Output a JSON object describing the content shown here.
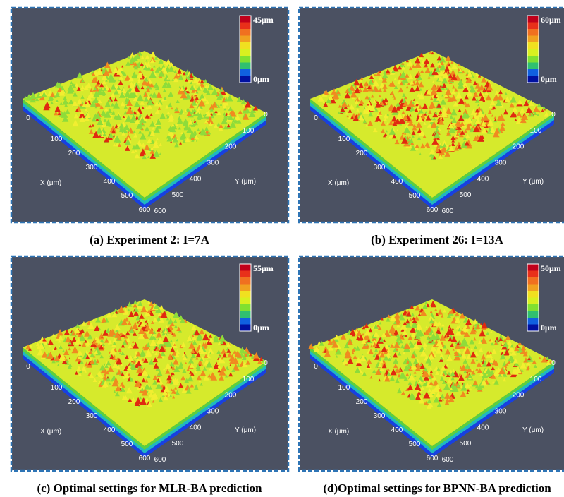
{
  "panels": [
    {
      "caption": "(a) Experiment 2: I=7A",
      "colorbar": {
        "max": "45μm",
        "min": "0μm"
      },
      "x_axis": {
        "title": "X (μm)",
        "ticks": [
          0,
          100,
          200,
          300,
          400,
          500,
          600
        ]
      },
      "y_axis": {
        "title": "Y (μm)",
        "ticks": [
          0,
          100,
          200,
          300,
          400,
          500,
          600
        ]
      }
    },
    {
      "caption": "(b) Experiment 26: I=13A",
      "colorbar": {
        "max": "60μm",
        "min": "0μm"
      },
      "x_axis": {
        "title": "X (μm)",
        "ticks": [
          0,
          100,
          200,
          300,
          400,
          500,
          600
        ]
      },
      "y_axis": {
        "title": "Y (μm)",
        "ticks": [
          0,
          100,
          200,
          300,
          400,
          500,
          600
        ]
      }
    },
    {
      "caption": "(c) Optimal settings for MLR-BA prediction",
      "colorbar": {
        "max": "55μm",
        "min": "0μm"
      },
      "x_axis": {
        "title": "X (μm)",
        "ticks": [
          0,
          100,
          200,
          300,
          400,
          500,
          600
        ]
      },
      "y_axis": {
        "title": "Y (μm)",
        "ticks": [
          0,
          100,
          200,
          300,
          400,
          500,
          600
        ]
      }
    },
    {
      "caption": "(d)Optimal settings for BPNN-BA prediction",
      "colorbar": {
        "max": "50μm",
        "min": "0μm"
      },
      "x_axis": {
        "title": "X (μm)",
        "ticks": [
          0,
          100,
          200,
          300,
          400,
          500,
          600
        ]
      },
      "y_axis": {
        "title": "Y (μm)",
        "ticks": [
          0,
          100,
          200,
          300,
          400,
          500,
          600
        ]
      }
    }
  ]
}
